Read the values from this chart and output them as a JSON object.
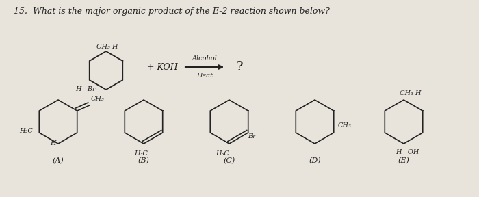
{
  "title": "15.  What is the major organic product of the E-2 reaction shown below?",
  "title_fontsize": 9,
  "title_style": "italic",
  "bg_color": "#e8e4dc",
  "text_color": "#222222",
  "fig_width": 7.0,
  "fig_height": 2.88,
  "dpi": 100,
  "reagent_text": "+ KOH",
  "arrow_label_top": "Alcohol",
  "arrow_label_bot": "Heat",
  "question_mark": "?",
  "reactant_label_top": "CH₃ H",
  "reactant_label_bot": "H   Br",
  "choices": [
    "(A)",
    "(B)",
    "(C)",
    "(D)",
    "(E)"
  ],
  "choice_labels_A": [
    "CH₃",
    "H",
    "H₃C"
  ],
  "choice_labels_B": [
    "H₃C"
  ],
  "choice_labels_C": [
    "H₃C",
    "Br"
  ],
  "choice_labels_D": [
    "CH₃"
  ],
  "choice_labels_E": [
    "CH₃ H",
    "H   OH"
  ]
}
